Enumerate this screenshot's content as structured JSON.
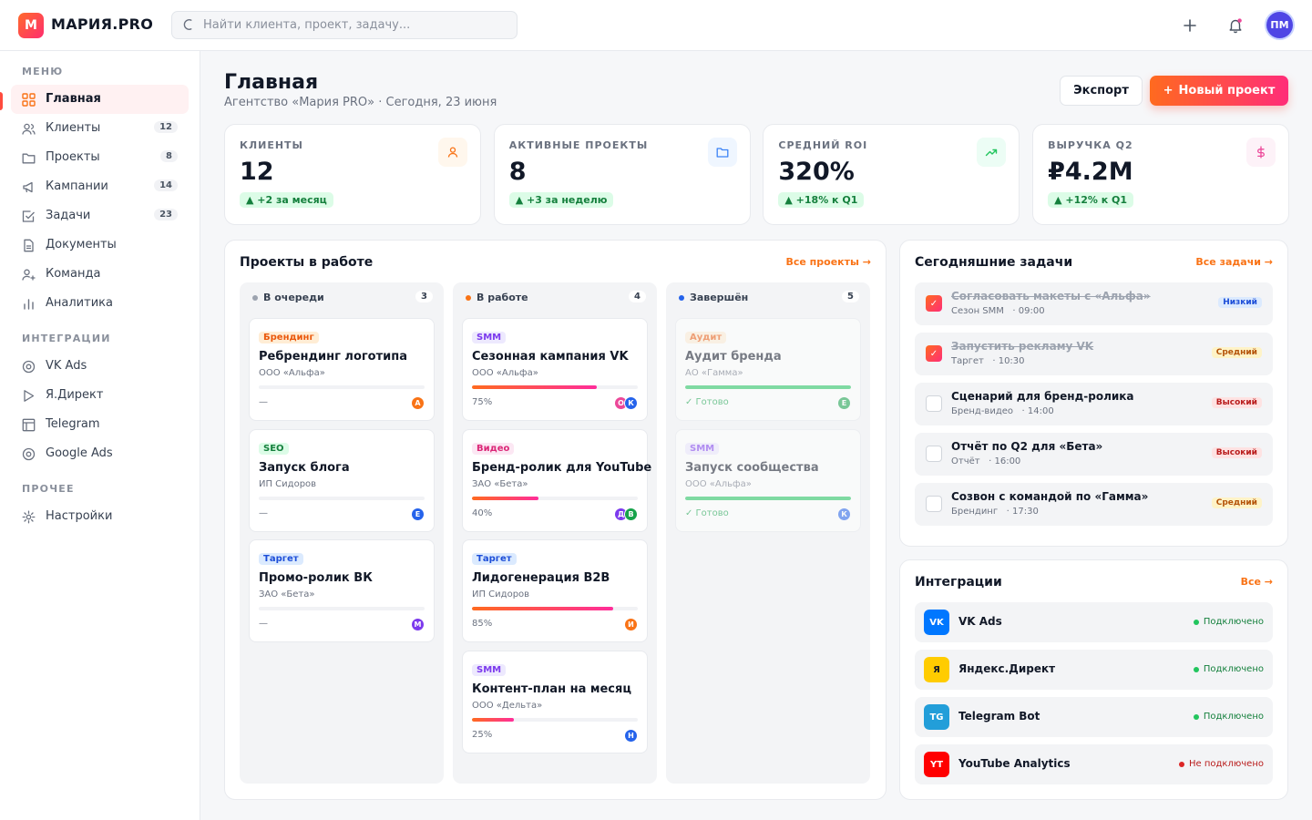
{
  "brand": {
    "mark": "M",
    "name": "МАРИЯ.PRO"
  },
  "search": {
    "placeholder": "Найти клиента, проект, задачу..."
  },
  "user": {
    "initials": "ПМ"
  },
  "sidebar": {
    "sections": [
      "МЕНЮ",
      "ИНТЕГРАЦИИ",
      "ПРОЧЕЕ"
    ],
    "menu": [
      {
        "label": "Главная",
        "count": ""
      },
      {
        "label": "Клиенты",
        "count": "12"
      },
      {
        "label": "Проекты",
        "count": "8"
      },
      {
        "label": "Кампании",
        "count": "14"
      },
      {
        "label": "Задачи",
        "count": "23"
      },
      {
        "label": "Документы",
        "count": ""
      },
      {
        "label": "Команда",
        "count": ""
      },
      {
        "label": "Аналитика",
        "count": ""
      }
    ],
    "integrations": [
      {
        "label": "VK Ads"
      },
      {
        "label": "Я.Директ"
      },
      {
        "label": "Telegram"
      },
      {
        "label": "Google Ads"
      }
    ],
    "other": [
      {
        "label": "Настройки"
      }
    ]
  },
  "header": {
    "title": "Главная",
    "subtitle": "Агентство «Мария PRO» · Сегодня, 23 июня",
    "export_label": "Экспорт",
    "new_project_label": "Новый проект"
  },
  "stats": [
    {
      "label": "КЛИЕНТЫ",
      "value": "12",
      "delta": "▲ +2 за месяц",
      "icon": "user-icon",
      "color": "#f97316"
    },
    {
      "label": "АКТИВНЫЕ ПРОЕКТЫ",
      "value": "8",
      "delta": "▲ +3 за неделю",
      "icon": "folder-icon",
      "color": "#3b82f6"
    },
    {
      "label": "СРЕДНИЙ ROI",
      "value": "320%",
      "delta": "▲ +18% к Q1",
      "icon": "trend-up-icon",
      "color": "#22c55e"
    },
    {
      "label": "ВЫРУЧКА Q2",
      "value": "₽4.2M",
      "delta": "▲ +12% к Q1",
      "icon": "dollar-icon",
      "color": "#ec4899"
    }
  ],
  "projects": {
    "title": "Проекты в работе",
    "link": "Все проекты →",
    "columns": [
      {
        "name": "В очереди",
        "count": "3",
        "dot": "#9ca3af",
        "cards": [
          {
            "tag": "Брендинг",
            "tag_color": "#ea580c",
            "tag_bg": "#ffedd5",
            "title": "Ребрендинг логотипа",
            "client": "ООО «Альфа»",
            "status": "—",
            "progress": 0,
            "avatars": [
              {
                "l": "А",
                "c": "#f97316"
              }
            ]
          },
          {
            "tag": "SEO",
            "tag_color": "#15803d",
            "tag_bg": "#dcfce7",
            "title": "Запуск блога",
            "client": "ИП Сидоров",
            "status": "—",
            "progress": 0,
            "avatars": [
              {
                "l": "Е",
                "c": "#2563eb"
              }
            ]
          },
          {
            "tag": "Таргет",
            "tag_color": "#1d4ed8",
            "tag_bg": "#dbeafe",
            "title": "Промо-ролик ВК",
            "client": "ЗАО «Бета»",
            "status": "—",
            "progress": 0,
            "avatars": [
              {
                "l": "М",
                "c": "#7c3aed"
              }
            ]
          }
        ]
      },
      {
        "name": "В работе",
        "count": "4",
        "dot": "#f97316",
        "cards": [
          {
            "tag": "SMM",
            "tag_color": "#7c3aed",
            "tag_bg": "#ede9fe",
            "title": "Сезонная кампания VK",
            "client": "ООО «Альфа»",
            "status": "75%",
            "progress": 75,
            "avatars": [
              {
                "l": "О",
                "c": "#ec4899"
              },
              {
                "l": "К",
                "c": "#2563eb"
              }
            ]
          },
          {
            "tag": "Видео",
            "tag_color": "#db2777",
            "tag_bg": "#fce7f3",
            "title": "Бренд-ролик для YouTube",
            "client": "ЗАО «Бета»",
            "status": "40%",
            "progress": 40,
            "avatars": [
              {
                "l": "Д",
                "c": "#7c3aed"
              },
              {
                "l": "В",
                "c": "#16a34a"
              }
            ]
          },
          {
            "tag": "Таргет",
            "tag_color": "#1d4ed8",
            "tag_bg": "#dbeafe",
            "title": "Лидогенерация B2B",
            "client": "ИП Сидоров",
            "status": "85%",
            "progress": 85,
            "avatars": [
              {
                "l": "И",
                "c": "#f97316"
              }
            ]
          },
          {
            "tag": "SMM",
            "tag_color": "#7c3aed",
            "tag_bg": "#ede9fe",
            "title": "Контент-план на месяц",
            "client": "ООО «Дельта»",
            "status": "25%",
            "progress": 25,
            "avatars": [
              {
                "l": "Н",
                "c": "#2563eb"
              }
            ]
          }
        ]
      },
      {
        "name": "Завершён",
        "count": "5",
        "dot": "#2563eb",
        "cards": [
          {
            "tag": "Аудит",
            "tag_color": "#ea580c",
            "tag_bg": "#ffedd5",
            "title": "Аудит бренда",
            "client": "АО «Гамма»",
            "status": "✓ Готово",
            "progress": 100,
            "avatars": [
              {
                "l": "Е",
                "c": "#16a34a"
              }
            ]
          },
          {
            "tag": "SMM",
            "tag_color": "#7c3aed",
            "tag_bg": "#ede9fe",
            "title": "Запуск сообщества",
            "client": "ООО «Альфа»",
            "status": "✓ Готово",
            "progress": 100,
            "avatars": [
              {
                "l": "К",
                "c": "#2563eb"
              }
            ]
          }
        ]
      }
    ]
  },
  "tasks": {
    "title": "Сегодняшние задачи",
    "link": "Все задачи →",
    "items": [
      {
        "title": "Согласовать макеты с «Альфа»",
        "meta": "Сезон SMM   · 09:00",
        "priority": "Низкий",
        "done": true,
        "pc": "#1d4ed8",
        "pb": "#dbeafe"
      },
      {
        "title": "Запустить рекламу VK",
        "meta": "Таргет   · 10:30",
        "priority": "Средний",
        "done": true,
        "pc": "#b45309",
        "pb": "#fef3c7"
      },
      {
        "title": "Сценарий для бренд-ролика",
        "meta": "Бренд-видео   · 14:00",
        "priority": "Высокий",
        "done": false,
        "pc": "#b91c1c",
        "pb": "#fee2e2"
      },
      {
        "title": "Отчёт по Q2 для «Бета»",
        "meta": "Отчёт   · 16:00",
        "priority": "Высокий",
        "done": false,
        "pc": "#b91c1c",
        "pb": "#fee2e2"
      },
      {
        "title": "Созвон с командой по «Гамма»",
        "meta": "Брендинг   · 17:30",
        "priority": "Средний",
        "done": false,
        "pc": "#b45309",
        "pb": "#fef3c7"
      }
    ]
  },
  "integrations": {
    "title": "Интеграции",
    "link": "Все →",
    "items": [
      {
        "logo": "VK",
        "bg": "#0077ff",
        "fg": "#ffffff",
        "name": "VK Ads",
        "status": "Подключено",
        "ok": true
      },
      {
        "logo": "Я",
        "bg": "#ffcc00",
        "fg": "#111827",
        "name": "Яндекс.Директ",
        "status": "Подключено",
        "ok": true
      },
      {
        "logo": "TG",
        "bg": "#229ed9",
        "fg": "#ffffff",
        "name": "Telegram Bot",
        "status": "Подключено",
        "ok": true
      },
      {
        "logo": "YT",
        "bg": "#ff0000",
        "fg": "#ffffff",
        "name": "YouTube Analytics",
        "status": "Не подключено",
        "ok": false
      }
    ]
  }
}
